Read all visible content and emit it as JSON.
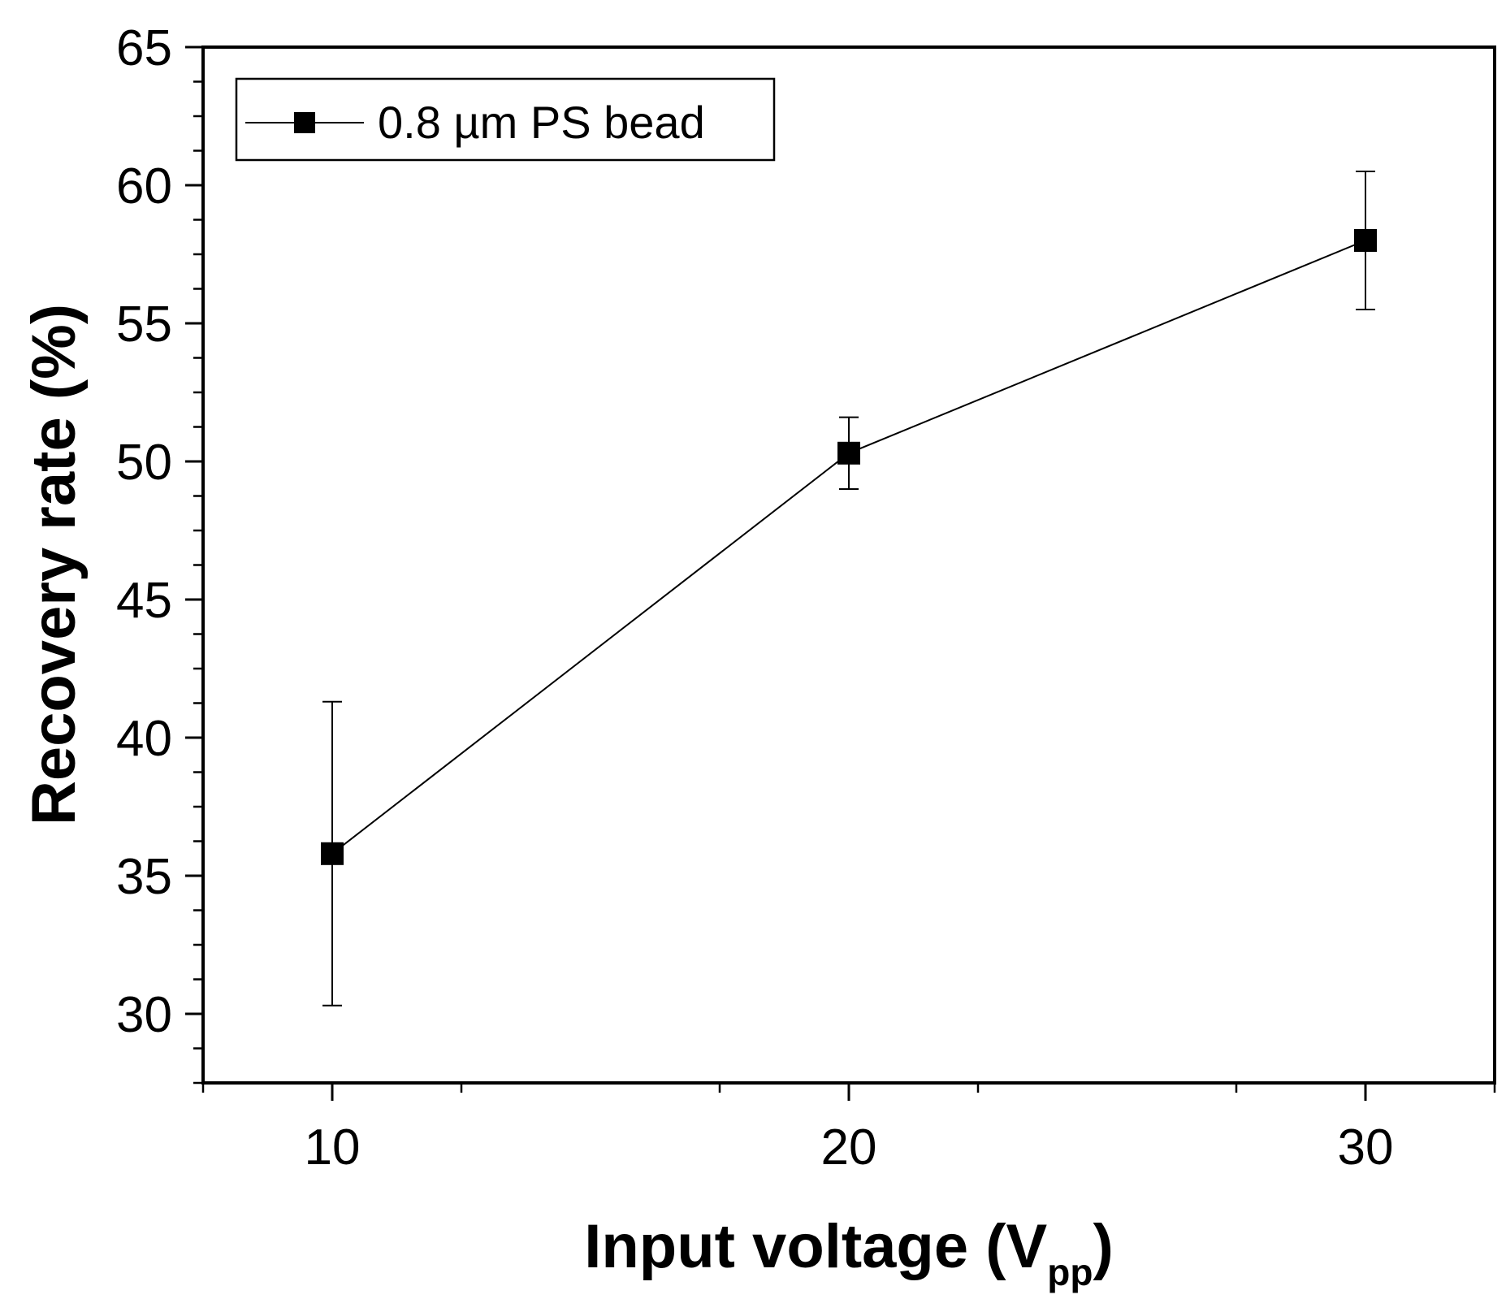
{
  "chart_data": {
    "type": "line",
    "x": [
      10,
      20,
      30
    ],
    "series": [
      {
        "name": "0.8 µm PS bead",
        "values": [
          35.8,
          50.3,
          58.0
        ],
        "error": [
          5.5,
          1.3,
          2.5
        ],
        "marker": "square",
        "color": "#000000"
      }
    ],
    "xlabel": "Input voltage (V",
    "xlabel_subscript": "pp",
    "xlabel_close": ")",
    "ylabel": "Recovery rate (%)",
    "xlim": [
      7.5,
      32.5
    ],
    "ylim": [
      27.5,
      65
    ],
    "xticks": [
      10,
      20,
      30
    ],
    "xtick_labels": [
      "10",
      "20",
      "30"
    ],
    "yticks": [
      30,
      35,
      40,
      45,
      50,
      55,
      60,
      65
    ],
    "ytick_labels": [
      "30",
      "35",
      "40",
      "45",
      "50",
      "55",
      "60",
      "65"
    ],
    "legend": {
      "label": "0.8 µm PS bead",
      "position": "top-left"
    },
    "grid": false
  }
}
